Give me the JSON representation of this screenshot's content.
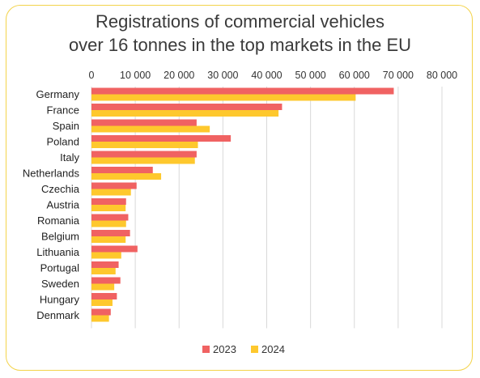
{
  "chart_data": {
    "type": "bar",
    "orientation": "horizontal",
    "title_line1": "Registrations of commercial vehicles",
    "title_line2": "over 16 tonnes in the top markets in the EU",
    "categories": [
      "Germany",
      "France",
      "Spain",
      "Poland",
      "Italy",
      "Netherlands",
      "Czechia",
      "Austria",
      "Romania",
      "Belgium",
      "Lithuania",
      "Portugal",
      "Sweden",
      "Hungary",
      "Denmark"
    ],
    "series": [
      {
        "name": "2023",
        "color": "#f06262",
        "values": [
          69000,
          43500,
          24000,
          31800,
          24000,
          14000,
          10300,
          7900,
          8400,
          8800,
          10500,
          6200,
          6600,
          5800,
          4400
        ]
      },
      {
        "name": "2024",
        "color": "#fec82d",
        "values": [
          60300,
          42700,
          27000,
          24300,
          23600,
          15900,
          9000,
          7800,
          7900,
          7800,
          6800,
          5500,
          5200,
          4800,
          4000
        ]
      }
    ],
    "x_ticks": [
      0,
      10000,
      20000,
      30000,
      40000,
      50000,
      60000,
      70000,
      80000
    ],
    "x_tick_labels": [
      "0",
      "10 000",
      "20 000",
      "30 000",
      "40 000",
      "50 000",
      "60 000",
      "70 000",
      "80 000"
    ],
    "xlim": [
      0,
      80000
    ],
    "grid": true,
    "axis_position": "top",
    "legend_position": "bottom-center"
  }
}
